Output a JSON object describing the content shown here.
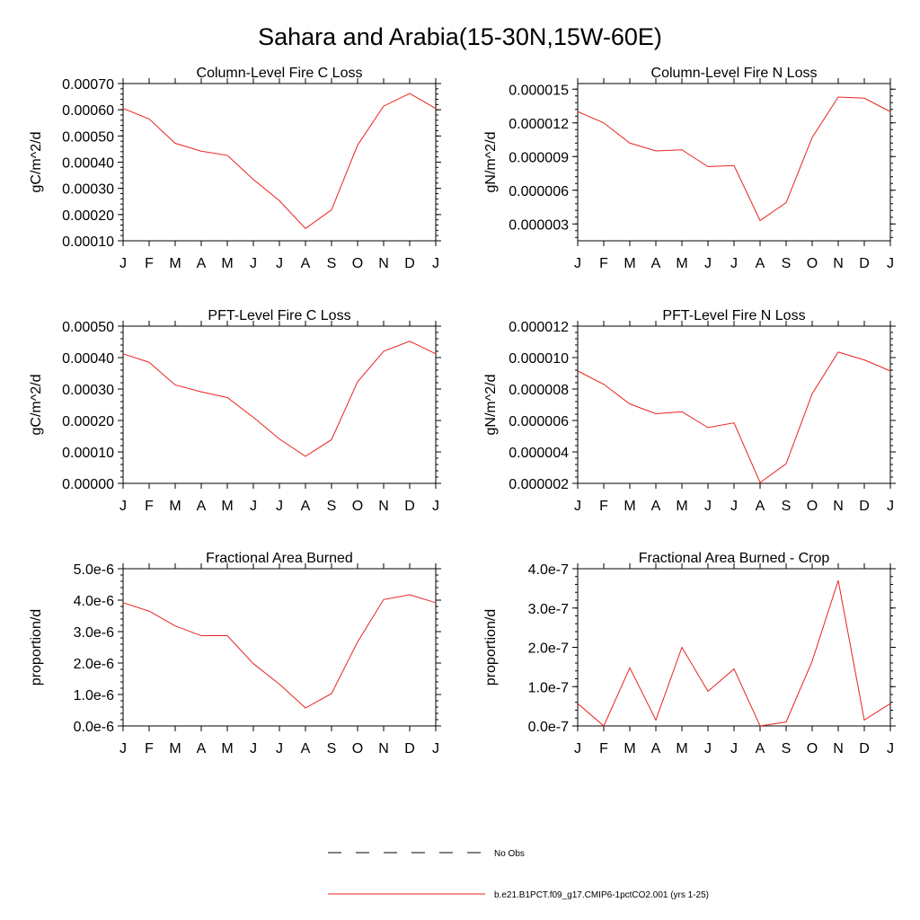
{
  "figure": {
    "title": "Sahara and Arabia(15-30N,15W-60E)",
    "line_color": "#e8231f",
    "legend": [
      {
        "label": "No Obs",
        "style": "dashed",
        "color": "#000000"
      },
      {
        "label": "b.e21.B1PCT.f09_g17.CMIP6-1pctCO2.001 (yrs 1-25)",
        "style": "solid",
        "color": "#e8231f"
      }
    ]
  },
  "chart_data": [
    {
      "type": "line",
      "title": "Column-Level Fire C Loss",
      "ylabel": "gC/m^2/d",
      "categories": [
        "J",
        "F",
        "M",
        "A",
        "M",
        "J",
        "J",
        "A",
        "S",
        "O",
        "N",
        "D",
        "J"
      ],
      "ylim": [
        0.0001,
        0.0007
      ],
      "yticks": [
        "0.00010",
        "0.00020",
        "0.00030",
        "0.00040",
        "0.00050",
        "0.00060",
        "0.00070"
      ],
      "series": [
        {
          "values": [
            0.000605,
            0.000565,
            0.000472,
            0.000442,
            0.000426,
            0.000334,
            0.000253,
            0.000147,
            0.000218,
            0.000465,
            0.000614,
            0.000662,
            0.000605
          ]
        }
      ]
    },
    {
      "type": "line",
      "title": "Column-Level Fire N Loss",
      "ylabel": "gN/m^2/d",
      "categories": [
        "J",
        "F",
        "M",
        "A",
        "M",
        "J",
        "J",
        "A",
        "S",
        "O",
        "N",
        "D",
        "J"
      ],
      "ylim": [
        1.5e-06,
        1.55e-05
      ],
      "yticks": [
        "0.000003",
        "0.000006",
        "0.000009",
        "0.000012",
        "0.000015"
      ],
      "series": [
        {
          "values": [
            1.3e-05,
            1.2e-05,
            1.02e-05,
            9.5e-06,
            9.6e-06,
            8.1e-06,
            8.2e-06,
            3.3e-06,
            4.9e-06,
            1.07e-05,
            1.43e-05,
            1.42e-05,
            1.3e-05
          ]
        }
      ]
    },
    {
      "type": "line",
      "title": "PFT-Level Fire C Loss",
      "ylabel": "gC/m^2/d",
      "categories": [
        "J",
        "F",
        "M",
        "A",
        "M",
        "J",
        "J",
        "A",
        "S",
        "O",
        "N",
        "D",
        "J"
      ],
      "ylim": [
        0.0,
        0.0005
      ],
      "yticks": [
        "0.00000",
        "0.00010",
        "0.00020",
        "0.00030",
        "0.00040",
        "0.00050"
      ],
      "series": [
        {
          "values": [
            0.000412,
            0.000385,
            0.000313,
            0.000291,
            0.000273,
            0.00021,
            0.000141,
            8.6e-05,
            0.000139,
            0.000323,
            0.00042,
            0.000452,
            0.000412
          ]
        }
      ]
    },
    {
      "type": "line",
      "title": "PFT-Level Fire N Loss",
      "ylabel": "gN/m^2/d",
      "categories": [
        "J",
        "F",
        "M",
        "A",
        "M",
        "J",
        "J",
        "A",
        "S",
        "O",
        "N",
        "D",
        "J"
      ],
      "ylim": [
        2e-06,
        1.2e-05
      ],
      "yticks": [
        "0.000002",
        "0.000004",
        "0.000006",
        "0.000008",
        "0.000010",
        "0.000012"
      ],
      "series": [
        {
          "values": [
            9.15e-06,
            8.3e-06,
            7.05e-06,
            6.43e-06,
            6.56e-06,
            5.55e-06,
            5.85e-06,
            2.05e-06,
            3.25e-06,
            7.7e-06,
            1.035e-05,
            9.85e-06,
            9.15e-06
          ]
        }
      ]
    },
    {
      "type": "line",
      "title": "Fractional Area Burned",
      "ylabel": "proportion/d",
      "categories": [
        "J",
        "F",
        "M",
        "A",
        "M",
        "J",
        "J",
        "A",
        "S",
        "O",
        "N",
        "D",
        "J"
      ],
      "ylim": [
        0.0,
        5e-06
      ],
      "yticks": [
        "0.0e-6",
        "1.0e-6",
        "2.0e-6",
        "3.0e-6",
        "4.0e-6",
        "5.0e-6"
      ],
      "series": [
        {
          "values": [
            3.92e-06,
            3.65e-06,
            3.18e-06,
            2.87e-06,
            2.87e-06,
            1.98e-06,
            1.33e-06,
            5.7e-07,
            1.03e-06,
            2.67e-06,
            4.02e-06,
            4.17e-06,
            3.92e-06
          ]
        }
      ]
    },
    {
      "type": "line",
      "title": "Fractional Area Burned - Crop",
      "ylabel": "proportion/d",
      "categories": [
        "J",
        "F",
        "M",
        "A",
        "M",
        "J",
        "J",
        "A",
        "S",
        "O",
        "N",
        "D",
        "J"
      ],
      "ylim": [
        0.0,
        4e-07
      ],
      "yticks": [
        "0.0e-7",
        "1.0e-7",
        "2.0e-7",
        "3.0e-7",
        "4.0e-7"
      ],
      "series": [
        {
          "values": [
            5.7e-08,
            0.0,
            1.48e-07,
            1.5e-08,
            2e-07,
            8.8e-08,
            1.45e-07,
            0.0,
            1e-08,
            1.65e-07,
            3.7e-07,
            1.5e-08,
            5.7e-08
          ]
        }
      ]
    }
  ]
}
